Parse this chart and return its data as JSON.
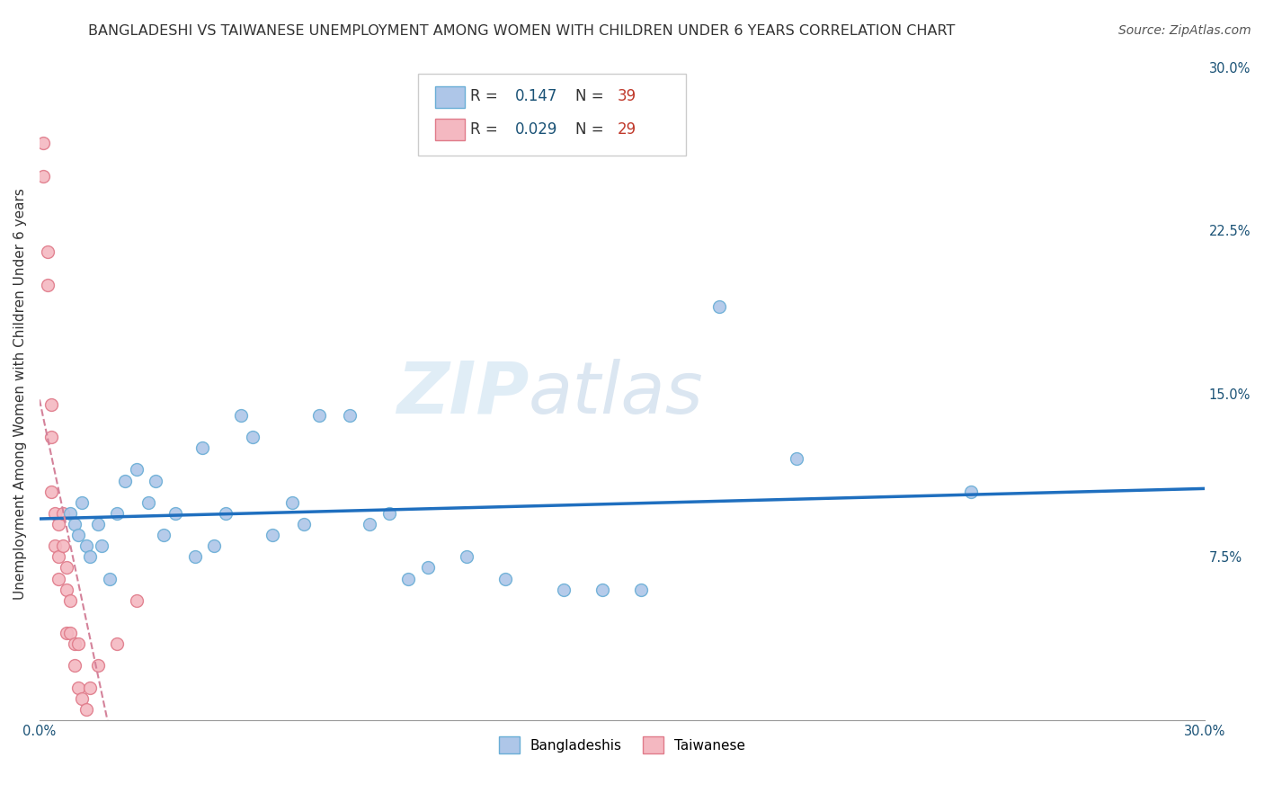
{
  "title": "BANGLADESHI VS TAIWANESE UNEMPLOYMENT AMONG WOMEN WITH CHILDREN UNDER 6 YEARS CORRELATION CHART",
  "source": "Source: ZipAtlas.com",
  "ylabel": "Unemployment Among Women with Children Under 6 years",
  "xmin": 0.0,
  "xmax": 0.3,
  "ymin": 0.0,
  "ymax": 0.3,
  "xticks": [
    0.0,
    0.05,
    0.1,
    0.15,
    0.2,
    0.25,
    0.3
  ],
  "ytick_positions": [
    0.075,
    0.15,
    0.225,
    0.3
  ],
  "ytick_labels": [
    "7.5%",
    "15.0%",
    "22.5%",
    "30.0%"
  ],
  "bangladeshi_color": "#aec6e8",
  "bangladeshi_edge": "#6aaed6",
  "taiwanese_color": "#f4b8c1",
  "taiwanese_edge": "#e07b8a",
  "regression_blue": "#1f6fbf",
  "regression_pink": "#d4829a",
  "watermark_zip": "ZIP",
  "watermark_atlas": "atlas",
  "bangladeshi_x": [
    0.008,
    0.009,
    0.01,
    0.011,
    0.012,
    0.013,
    0.015,
    0.016,
    0.018,
    0.02,
    0.022,
    0.025,
    0.028,
    0.03,
    0.032,
    0.035,
    0.04,
    0.042,
    0.045,
    0.048,
    0.052,
    0.055,
    0.06,
    0.065,
    0.068,
    0.072,
    0.08,
    0.085,
    0.09,
    0.095,
    0.1,
    0.11,
    0.12,
    0.135,
    0.145,
    0.155,
    0.175,
    0.195,
    0.24
  ],
  "bangladeshi_y": [
    0.095,
    0.09,
    0.085,
    0.1,
    0.08,
    0.075,
    0.09,
    0.08,
    0.065,
    0.095,
    0.11,
    0.115,
    0.1,
    0.11,
    0.085,
    0.095,
    0.075,
    0.125,
    0.08,
    0.095,
    0.14,
    0.13,
    0.085,
    0.1,
    0.09,
    0.14,
    0.14,
    0.09,
    0.095,
    0.065,
    0.07,
    0.075,
    0.065,
    0.06,
    0.06,
    0.06,
    0.19,
    0.12,
    0.105
  ],
  "taiwanese_x": [
    0.001,
    0.001,
    0.002,
    0.002,
    0.003,
    0.003,
    0.003,
    0.004,
    0.004,
    0.005,
    0.005,
    0.005,
    0.006,
    0.006,
    0.007,
    0.007,
    0.007,
    0.008,
    0.008,
    0.009,
    0.009,
    0.01,
    0.01,
    0.011,
    0.012,
    0.013,
    0.015,
    0.02,
    0.025
  ],
  "taiwanese_y": [
    0.265,
    0.25,
    0.215,
    0.2,
    0.145,
    0.13,
    0.105,
    0.095,
    0.08,
    0.09,
    0.075,
    0.065,
    0.095,
    0.08,
    0.07,
    0.06,
    0.04,
    0.055,
    0.04,
    0.035,
    0.025,
    0.035,
    0.015,
    0.01,
    0.005,
    0.015,
    0.025,
    0.035,
    0.055
  ],
  "marker_size": 100,
  "title_fontsize": 11.5,
  "axis_label_fontsize": 11,
  "tick_fontsize": 10.5,
  "legend_fontsize": 11,
  "source_fontsize": 10
}
